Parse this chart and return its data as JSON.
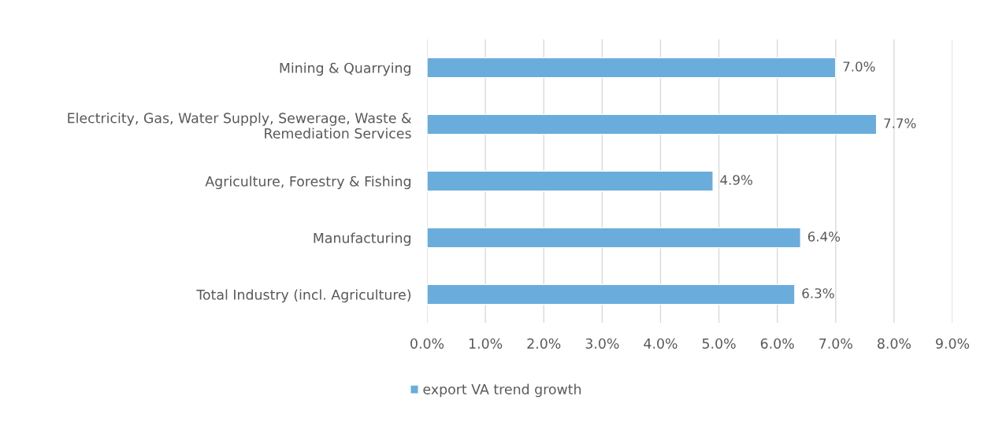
{
  "chart_data": {
    "type": "bar",
    "orientation": "horizontal",
    "categories": [
      "Mining & Quarrying",
      "Electricity, Gas, Water Supply, Sewerage, Waste &\nRemediation Services",
      "Agriculture, Forestry & Fishing",
      "Manufacturing",
      "Total Industry (incl. Agriculture)"
    ],
    "series": [
      {
        "name": "export VA trend growth",
        "color": "#6aaddc",
        "values": [
          7.0,
          7.7,
          4.9,
          6.4,
          6.3
        ],
        "value_labels": [
          "7.0%",
          "7.7%",
          "4.9%",
          "6.4%",
          "6.3%"
        ]
      }
    ],
    "xlim": [
      0,
      9
    ],
    "xticks": [
      {
        "value": 0,
        "label": "0.0%"
      },
      {
        "value": 1,
        "label": "1.0%"
      },
      {
        "value": 2,
        "label": "2.0%"
      },
      {
        "value": 3,
        "label": "3.0%"
      },
      {
        "value": 4,
        "label": "4.0%"
      },
      {
        "value": 5,
        "label": "5.0%"
      },
      {
        "value": 6,
        "label": "6.0%"
      },
      {
        "value": 7,
        "label": "7.0%"
      },
      {
        "value": 8,
        "label": "8.0%"
      },
      {
        "value": 9,
        "label": "9.0%"
      }
    ],
    "grid": "x",
    "legend": "bottom"
  }
}
